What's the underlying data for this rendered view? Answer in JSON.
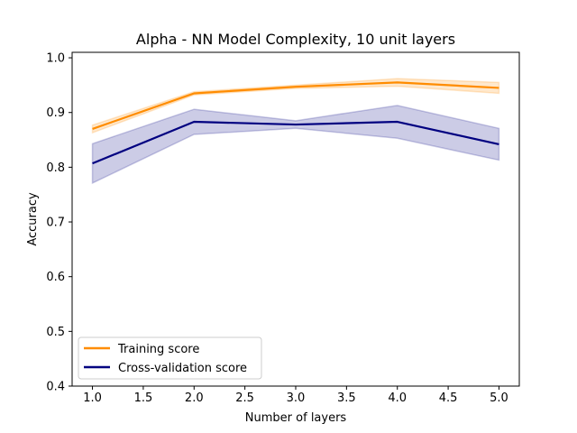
{
  "chart_data": {
    "type": "line",
    "title": "Alpha - NN Model Complexity, 10 unit layers",
    "xlabel": "Number of layers",
    "ylabel": "Accuracy",
    "xlim": [
      0.8,
      5.2
    ],
    "ylim": [
      0.4,
      1.01
    ],
    "x_ticks": [
      1.0,
      1.5,
      2.0,
      2.5,
      3.0,
      3.5,
      4.0,
      4.5,
      5.0
    ],
    "x_tick_labels": [
      "1.0",
      "1.5",
      "2.0",
      "2.5",
      "3.0",
      "3.5",
      "4.0",
      "4.5",
      "5.0"
    ],
    "y_ticks": [
      0.4,
      0.5,
      0.6,
      0.7,
      0.8,
      0.9,
      1.0
    ],
    "y_tick_labels": [
      "0.4",
      "0.5",
      "0.6",
      "0.7",
      "0.8",
      "0.9",
      "1.0"
    ],
    "grid": false,
    "legend_position": "lower-left",
    "x": [
      1,
      2,
      3,
      4,
      5
    ],
    "series": [
      {
        "name": "Training score",
        "color": "#ff8c00",
        "values": [
          0.87,
          0.935,
          0.947,
          0.955,
          0.945
        ],
        "band_low": [
          0.863,
          0.932,
          0.944,
          0.948,
          0.935
        ],
        "band_high": [
          0.877,
          0.938,
          0.95,
          0.962,
          0.955
        ]
      },
      {
        "name": "Cross-validation score",
        "color": "#000080",
        "values": [
          0.807,
          0.883,
          0.878,
          0.883,
          0.842
        ],
        "band_low": [
          0.771,
          0.86,
          0.871,
          0.853,
          0.813
        ],
        "band_high": [
          0.843,
          0.906,
          0.885,
          0.913,
          0.871
        ]
      }
    ]
  }
}
